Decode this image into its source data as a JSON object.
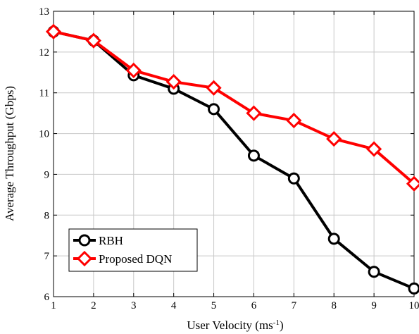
{
  "chart_data": {
    "type": "line",
    "xlabel": "User Velocity (ms",
    "xlabel_sup": "-1",
    "xlabel_suffix": ")",
    "ylabel": "Average Throughput (Gbps)",
    "x": [
      1,
      2,
      3,
      4,
      5,
      6,
      7,
      8,
      9,
      10
    ],
    "xlim": [
      1,
      10
    ],
    "ylim": [
      6,
      13
    ],
    "xticks": [
      "1",
      "2",
      "3",
      "4",
      "5",
      "6",
      "7",
      "8",
      "9",
      "10"
    ],
    "yticks": [
      "6",
      "7",
      "8",
      "9",
      "10",
      "11",
      "12",
      "13"
    ],
    "grid": true,
    "legend_position": "bottom-left",
    "series": [
      {
        "name": "RBH",
        "color": "#000000",
        "marker": "circle",
        "values": [
          12.5,
          12.28,
          11.43,
          11.1,
          10.6,
          9.46,
          8.9,
          7.42,
          6.61,
          6.2
        ]
      },
      {
        "name": "Proposed DQN",
        "color": "#ff0000",
        "marker": "diamond",
        "values": [
          12.5,
          12.28,
          11.55,
          11.27,
          11.12,
          10.5,
          10.32,
          9.87,
          9.62,
          8.77
        ]
      }
    ]
  }
}
